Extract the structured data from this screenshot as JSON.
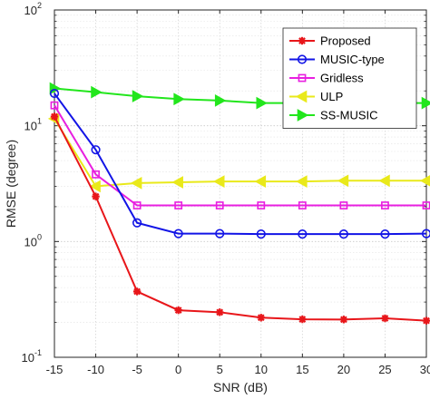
{
  "chart_data": {
    "type": "line",
    "xlabel": "SNR (dB)",
    "ylabel": "RMSE (degree)",
    "x": [
      -15,
      -10,
      -5,
      0,
      5,
      10,
      15,
      20,
      25,
      30
    ],
    "x_ticks": [
      "-15",
      "-10",
      "-5",
      "0",
      "5",
      "10",
      "15",
      "20",
      "25",
      "30"
    ],
    "xlim": [
      -15,
      30
    ],
    "ylim": [
      0.1,
      100
    ],
    "yscale": "log",
    "y_ticks": [
      {
        "base": "10",
        "exp": "-1",
        "value": 0.1
      },
      {
        "base": "10",
        "exp": "0",
        "value": 1
      },
      {
        "base": "10",
        "exp": "1",
        "value": 10
      },
      {
        "base": "10",
        "exp": "2",
        "value": 100
      }
    ],
    "grid": true,
    "legend_position": "top-right",
    "series": [
      {
        "name": "Proposed",
        "color": "#e8161a",
        "marker": "star",
        "values": [
          12.0,
          2.45,
          0.37,
          0.255,
          0.245,
          0.22,
          0.213,
          0.212,
          0.217,
          0.207
        ]
      },
      {
        "name": "MUSIC-type",
        "color": "#1214e6",
        "marker": "circle",
        "values": [
          19.0,
          6.2,
          1.45,
          1.17,
          1.17,
          1.16,
          1.16,
          1.16,
          1.16,
          1.17
        ]
      },
      {
        "name": "Gridless",
        "color": "#e81fe0",
        "marker": "square",
        "values": [
          15.0,
          3.8,
          2.05,
          2.05,
          2.05,
          2.05,
          2.05,
          2.05,
          2.05,
          2.05
        ]
      },
      {
        "name": "ULP",
        "color": "#e9e91a",
        "marker": "triangle-left",
        "values": [
          11.5,
          3.0,
          3.2,
          3.25,
          3.3,
          3.3,
          3.3,
          3.35,
          3.35,
          3.35
        ]
      },
      {
        "name": "SS-MUSIC",
        "color": "#22e61c",
        "marker": "triangle-right",
        "values": [
          21.0,
          19.5,
          18.0,
          17.0,
          16.5,
          15.7,
          15.7,
          15.7,
          15.7,
          15.7
        ]
      }
    ]
  }
}
